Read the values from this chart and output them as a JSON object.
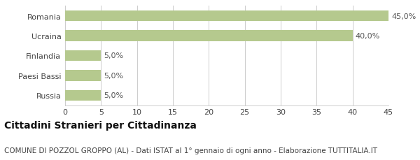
{
  "categories": [
    "Russia",
    "Paesi Bassi",
    "Finlandia",
    "Ucraina",
    "Romania"
  ],
  "values": [
    5.0,
    5.0,
    5.0,
    40.0,
    45.0
  ],
  "bar_color": "#b5c98e",
  "bar_labels": [
    "5,0%",
    "5,0%",
    "5,0%",
    "40,0%",
    "45,0%"
  ],
  "xlim": [
    0,
    45
  ],
  "xticks": [
    0,
    5,
    10,
    15,
    20,
    25,
    30,
    35,
    40,
    45
  ],
  "title": "Cittadini Stranieri per Cittadinanza",
  "subtitle": "COMUNE DI POZZOL GROPPO (AL) - Dati ISTAT al 1° gennaio di ogni anno - Elaborazione TUTTITALIA.IT",
  "title_fontsize": 10,
  "subtitle_fontsize": 7.5,
  "label_fontsize": 8,
  "tick_fontsize": 8,
  "ytick_fontsize": 8,
  "background_color": "#ffffff",
  "grid_color": "#cccccc",
  "text_color": "#444444",
  "bar_label_color": "#555555",
  "bar_height": 0.55
}
